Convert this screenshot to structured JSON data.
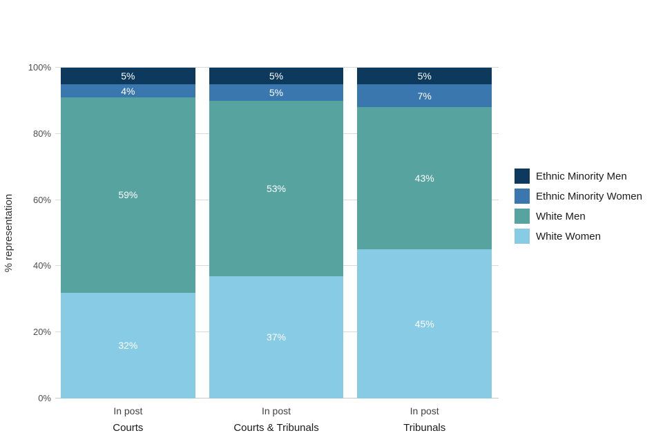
{
  "chart_data": {
    "type": "bar",
    "stacked": true,
    "title": "",
    "xlabel": "",
    "ylabel": "% representation",
    "ylim": [
      0,
      100
    ],
    "yticks": [
      0,
      20,
      40,
      60,
      80,
      100
    ],
    "ytick_suffix": "%",
    "grid": true,
    "legend_position": "right",
    "categories": [
      "Courts",
      "Courts & Tribunals",
      "Tribunals"
    ],
    "x_tick_label": "In post",
    "series": [
      {
        "name": "White Women",
        "color": "#87cbe4",
        "values": [
          32,
          37,
          45
        ]
      },
      {
        "name": "White Men",
        "color": "#57a3a0",
        "values": [
          59,
          53,
          43
        ]
      },
      {
        "name": "Ethnic Minority  Women",
        "color": "#3b77af",
        "values": [
          4,
          5,
          7
        ]
      },
      {
        "name": "Ethnic Minority  Men",
        "color": "#0d3a5c",
        "values": [
          5,
          5,
          5
        ]
      }
    ],
    "legend_order": [
      "Ethnic Minority  Men",
      "Ethnic Minority  Women",
      "White Men",
      "White Women"
    ],
    "value_label_suffix": "%"
  }
}
